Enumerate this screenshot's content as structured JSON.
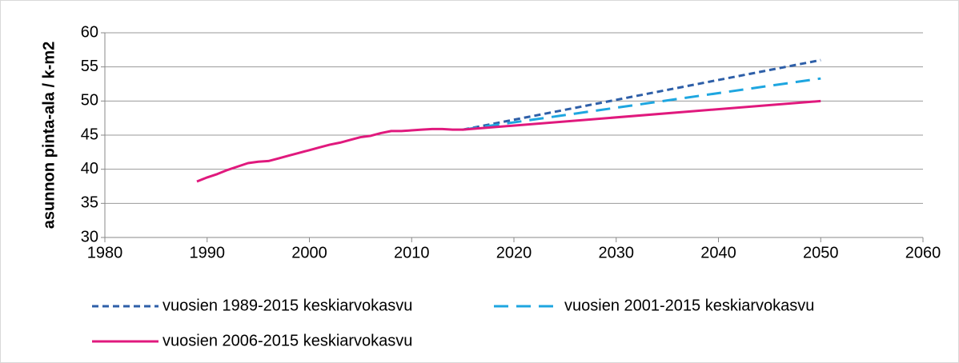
{
  "chart_data": {
    "type": "line",
    "ylabel": "asunnon pinta-ala / k-m2",
    "x": [
      1989,
      1990,
      1991,
      1992,
      1993,
      1994,
      1995,
      1996,
      1997,
      1998,
      1999,
      2000,
      2001,
      2002,
      2003,
      2004,
      2005,
      2006,
      2007,
      2008,
      2009,
      2010,
      2011,
      2012,
      2013,
      2014,
      2015,
      2050
    ],
    "series": [
      {
        "name": "vuosien 1989-2015 keskiarvokasvu",
        "color": "#2e5fa8",
        "dash": "8 5",
        "values": [
          null,
          null,
          null,
          null,
          null,
          null,
          null,
          null,
          null,
          null,
          null,
          null,
          null,
          null,
          null,
          null,
          null,
          null,
          null,
          null,
          null,
          null,
          null,
          null,
          null,
          null,
          45.8,
          56.0
        ]
      },
      {
        "name": "vuosien 2001-2015 keskiarvokasvu",
        "color": "#1ea6e0",
        "dash": "18 10",
        "values": [
          null,
          null,
          null,
          null,
          null,
          null,
          null,
          null,
          null,
          null,
          null,
          null,
          null,
          null,
          null,
          null,
          null,
          null,
          null,
          null,
          null,
          null,
          null,
          null,
          null,
          null,
          45.8,
          53.3
        ]
      },
      {
        "name": "vuosien 2006-2015 keskiarvokasvu",
        "color": "#e0197d",
        "values": [
          38.2,
          38.8,
          39.3,
          39.9,
          40.4,
          40.9,
          41.1,
          41.2,
          41.6,
          42.0,
          42.4,
          42.8,
          43.2,
          43.6,
          43.9,
          44.3,
          44.7,
          44.9,
          45.3,
          45.6,
          45.6,
          45.7,
          45.8,
          45.9,
          45.9,
          45.8,
          45.8,
          50.0
        ]
      }
    ],
    "xlim": [
      1980,
      2060
    ],
    "xticks": [
      1980,
      1990,
      2000,
      2010,
      2020,
      2030,
      2040,
      2050,
      2060
    ],
    "ylim": [
      30,
      60
    ],
    "yticks": [
      30,
      35,
      40,
      45,
      50,
      55,
      60
    ],
    "grid": true
  }
}
